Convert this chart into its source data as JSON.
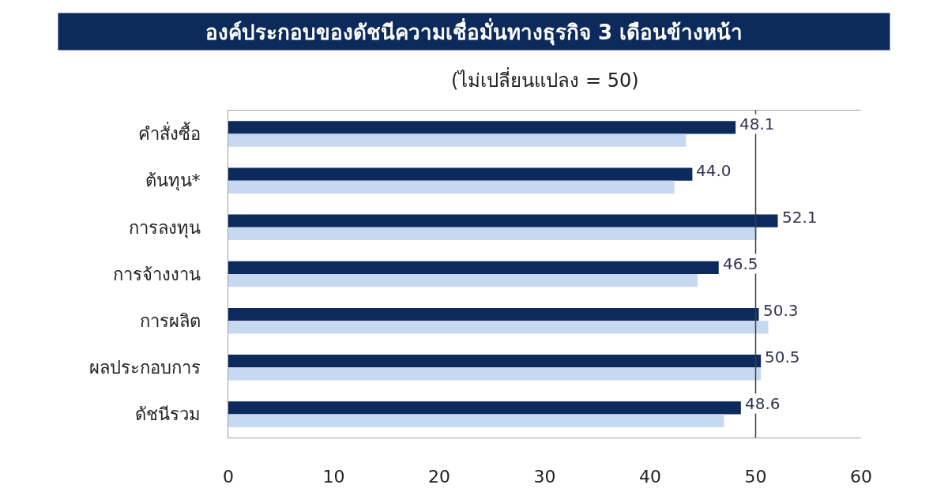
{
  "chart_data": {
    "type": "bar",
    "orientation": "horizontal",
    "title": "องค์ประกอบของดัชนีความเชื่อมั่นทางธุรกิจ 3 เดือนข้างหน้า",
    "subtitle": "(ไม่เปลี่ยนแปลง = 50)",
    "categories": [
      "คำสั่งซื้อ",
      "ต้นทุน*",
      "การลงทุน",
      "การจ้างงาน",
      "การผลิต",
      "ผลประกอบการ",
      "ดัชนีรวม"
    ],
    "series": [
      {
        "color": "#0c2a5c",
        "values": [
          48.1,
          44.0,
          52.1,
          46.5,
          50.3,
          50.5,
          48.6
        ],
        "value_labels": [
          "48.1",
          "44.0",
          "52.1",
          "46.5",
          "50.3",
          "50.5",
          "48.6"
        ]
      },
      {
        "color": "#c6d9f1",
        "values": [
          43.4,
          42.3,
          50.1,
          44.5,
          51.2,
          50.5,
          47.0
        ]
      }
    ],
    "xlim": [
      0,
      60
    ],
    "xticks": [
      0,
      10,
      20,
      30,
      40,
      50,
      60
    ],
    "ref_lines": [
      {
        "axis": "x",
        "value": 50,
        "color": "#404040"
      }
    ]
  }
}
